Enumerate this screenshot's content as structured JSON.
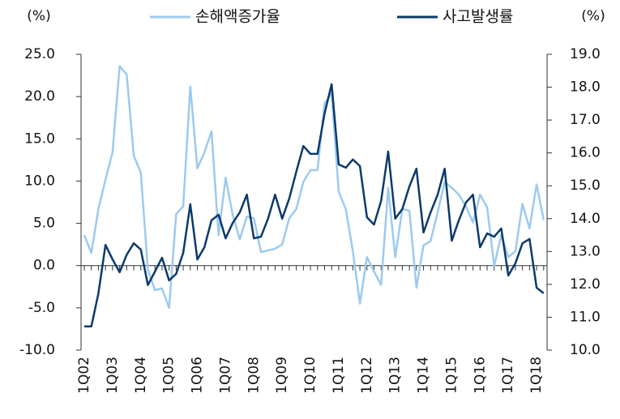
{
  "chart_data": {
    "type": "line",
    "y_label": "(%)",
    "y2_label": "(%)",
    "categories": [
      "1Q02",
      null,
      null,
      null,
      "1Q03",
      null,
      null,
      null,
      "1Q04",
      null,
      null,
      null,
      "1Q05",
      null,
      null,
      null,
      "1Q06",
      null,
      null,
      null,
      "1Q07",
      null,
      null,
      null,
      "1Q08",
      null,
      null,
      null,
      "1Q09",
      null,
      null,
      null,
      "1Q10",
      null,
      null,
      null,
      "1Q11",
      null,
      null,
      null,
      "1Q12",
      null,
      null,
      null,
      "1Q13",
      null,
      null,
      null,
      "1Q14",
      null,
      null,
      null,
      "1Q15",
      null,
      null,
      null,
      "1Q16",
      null,
      null,
      null,
      "1Q17",
      null,
      null,
      null,
      "1Q18",
      null
    ],
    "series": [
      {
        "name": "손해액증가율",
        "color": "#9dcaee",
        "axis": "y",
        "values": [
          3.6,
          1.5,
          6.7,
          10.2,
          13.4,
          23.6,
          22.6,
          13,
          11,
          -0.5,
          -2.9,
          -2.7,
          -5,
          6.1,
          7,
          21.2,
          11.5,
          13.4,
          15.9,
          3.6,
          10.4,
          6,
          3.1,
          5.8,
          5.6,
          1.6,
          1.8,
          2,
          2.5,
          5.6,
          6.7,
          9.9,
          11.3,
          11.3,
          19.2,
          20.4,
          8.7,
          6.7,
          1.7,
          -4.5,
          1,
          -0.7,
          -2.3,
          9.2,
          1,
          6.7,
          6.5,
          -2.6,
          2.4,
          2.9,
          6.3,
          9.9,
          9.2,
          8.4,
          7,
          5.1,
          8.4,
          6.9,
          0,
          3.6,
          1,
          1.7,
          7.3,
          4.4,
          9.6,
          5.4
        ]
      },
      {
        "name": "사고발생률",
        "color": "#0b3a6b",
        "axis": "y2",
        "values": [
          10.72,
          10.72,
          11.73,
          13.2,
          12.76,
          12.37,
          12.9,
          13.25,
          13.06,
          11.98,
          12.39,
          12.81,
          12.12,
          12.32,
          12.96,
          14.44,
          12.76,
          13.13,
          13.95,
          14.12,
          13.4,
          13.87,
          14.19,
          14.73,
          13.4,
          13.45,
          14,
          14.73,
          14,
          14.61,
          15.43,
          16.21,
          15.97,
          15.97,
          17.2,
          18.09,
          15.65,
          15.55,
          15.8,
          15.6,
          14.04,
          13.82,
          14.54,
          16.04,
          14,
          14.29,
          14.98,
          15.52,
          13.58,
          14.19,
          14.73,
          15.52,
          13.33,
          13.95,
          14.49,
          14.73,
          13.13,
          13.55,
          13.45,
          13.7,
          12.27,
          12.64,
          13.25,
          13.38,
          11.9,
          11.73
        ]
      }
    ],
    "ylim": [
      -10,
      25
    ],
    "yticks": [
      {
        "value": -10,
        "label": "-10.0"
      },
      {
        "value": -5,
        "label": "-5.0"
      },
      {
        "value": 0,
        "label": "0.0"
      },
      {
        "value": 5,
        "label": "5.0"
      },
      {
        "value": 10,
        "label": "10.0"
      },
      {
        "value": 15,
        "label": "15.0"
      },
      {
        "value": 20,
        "label": "20.0"
      },
      {
        "value": 25,
        "label": "25.0"
      }
    ],
    "y2lim": [
      10,
      19
    ],
    "y2ticks": [
      {
        "value": 10,
        "label": "10.0"
      },
      {
        "value": 11,
        "label": "11.0"
      },
      {
        "value": 12,
        "label": "12.0"
      },
      {
        "value": 13,
        "label": "13.0"
      },
      {
        "value": 14,
        "label": "14.0"
      },
      {
        "value": 15,
        "label": "15.0"
      },
      {
        "value": 16,
        "label": "16.0"
      },
      {
        "value": 17,
        "label": "17.0"
      },
      {
        "value": 18,
        "label": "18.0"
      },
      {
        "value": 19,
        "label": "19.0"
      }
    ]
  }
}
